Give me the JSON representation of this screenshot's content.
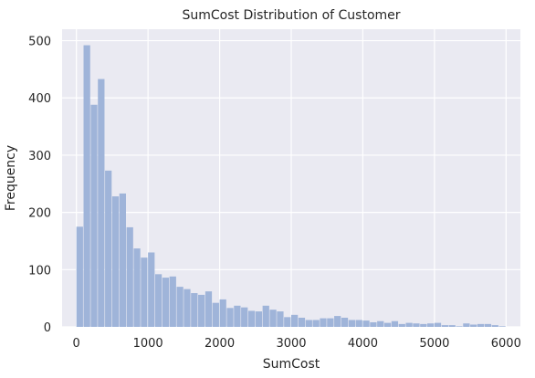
{
  "chart_data": {
    "type": "bar",
    "title": "SumCost Distribution of Customer",
    "xlabel": "SumCost",
    "ylabel": "Frequency",
    "xlim": [
      -200,
      6200
    ],
    "ylim": [
      0,
      520
    ],
    "xticks": [
      0,
      1000,
      2000,
      3000,
      4000,
      5000,
      6000
    ],
    "yticks": [
      0,
      100,
      200,
      300,
      400,
      500
    ],
    "grid": true,
    "bar_color": "#9fb4d9",
    "plot_background": "#eaeaf2",
    "bin_start": 0,
    "bin_width": 100,
    "values": [
      175,
      492,
      388,
      433,
      273,
      228,
      233,
      174,
      137,
      121,
      130,
      92,
      86,
      88,
      70,
      66,
      59,
      56,
      62,
      42,
      48,
      33,
      37,
      34,
      28,
      27,
      37,
      30,
      27,
      17,
      21,
      16,
      12,
      12,
      15,
      15,
      19,
      16,
      12,
      12,
      11,
      8,
      10,
      7,
      10,
      5,
      7,
      6,
      5,
      6,
      7,
      3,
      3,
      1,
      6,
      4,
      5,
      5,
      3,
      1
    ]
  }
}
